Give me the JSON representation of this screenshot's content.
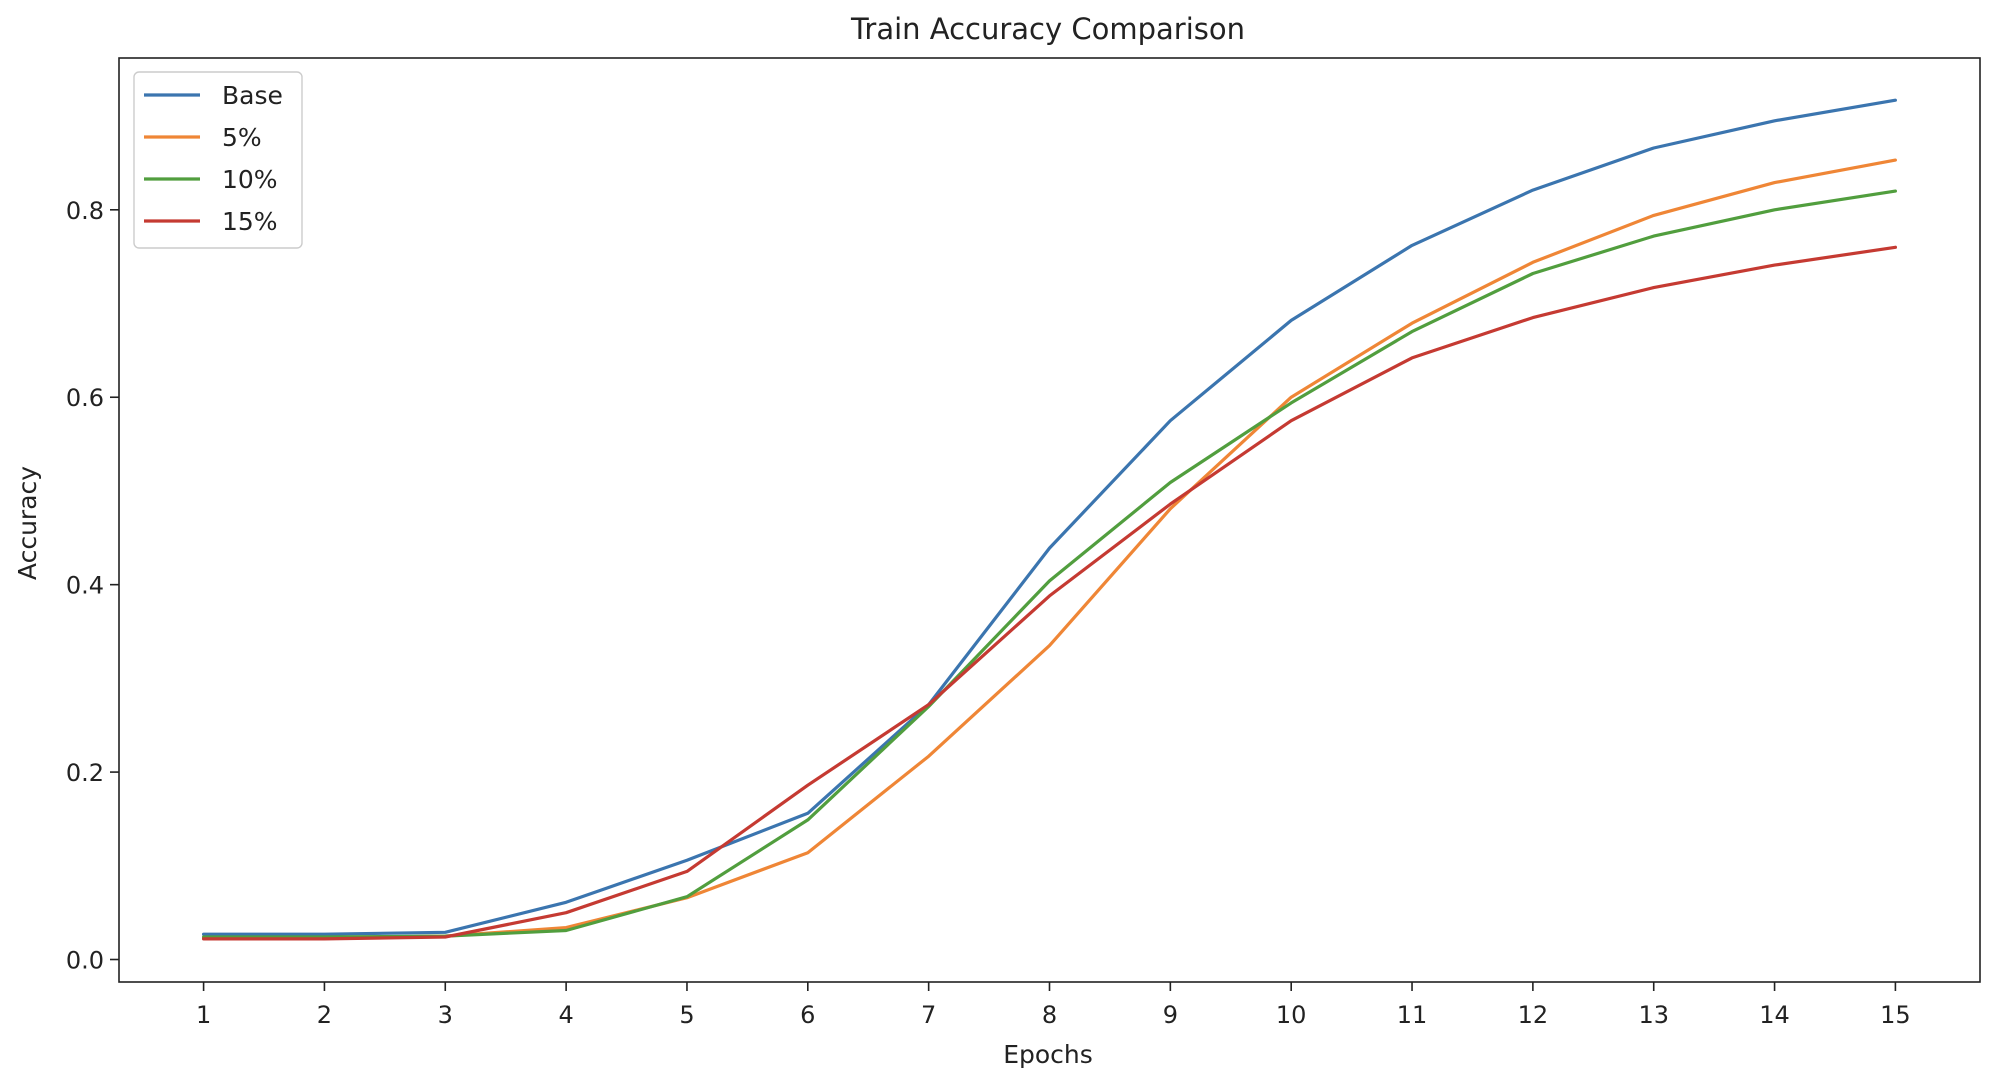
{
  "chart_data": {
    "type": "line",
    "title": "Train Accuracy Comparison",
    "xlabel": "Epochs",
    "ylabel": "Accuracy",
    "x": [
      1,
      2,
      3,
      4,
      5,
      6,
      7,
      8,
      9,
      10,
      11,
      12,
      13,
      14,
      15
    ],
    "xlim": [
      0.3,
      15.7
    ],
    "ylim": [
      -0.024,
      0.962
    ],
    "yticks": [
      "0.0",
      "0.2",
      "0.4",
      "0.6",
      "0.8"
    ],
    "grid": false,
    "legend_position": "top-left",
    "series": [
      {
        "name": "Base",
        "color": "#3b75af",
        "values": [
          0.027,
          0.027,
          0.029,
          0.061,
          0.106,
          0.156,
          0.272,
          0.439,
          0.575,
          0.682,
          0.762,
          0.821,
          0.866,
          0.895,
          0.917
        ]
      },
      {
        "name": "5%",
        "color": "#ef8636",
        "values": [
          0.023,
          0.023,
          0.025,
          0.034,
          0.066,
          0.114,
          0.217,
          0.335,
          0.481,
          0.6,
          0.679,
          0.744,
          0.794,
          0.829,
          0.853
        ]
      },
      {
        "name": "10%",
        "color": "#519e3e",
        "values": [
          0.024,
          0.024,
          0.025,
          0.031,
          0.067,
          0.149,
          0.27,
          0.404,
          0.509,
          0.594,
          0.67,
          0.732,
          0.772,
          0.8,
          0.82
        ]
      },
      {
        "name": "15%",
        "color": "#c53a32",
        "values": [
          0.022,
          0.022,
          0.024,
          0.05,
          0.094,
          0.186,
          0.272,
          0.388,
          0.486,
          0.575,
          0.642,
          0.685,
          0.717,
          0.741,
          0.76
        ]
      }
    ]
  }
}
